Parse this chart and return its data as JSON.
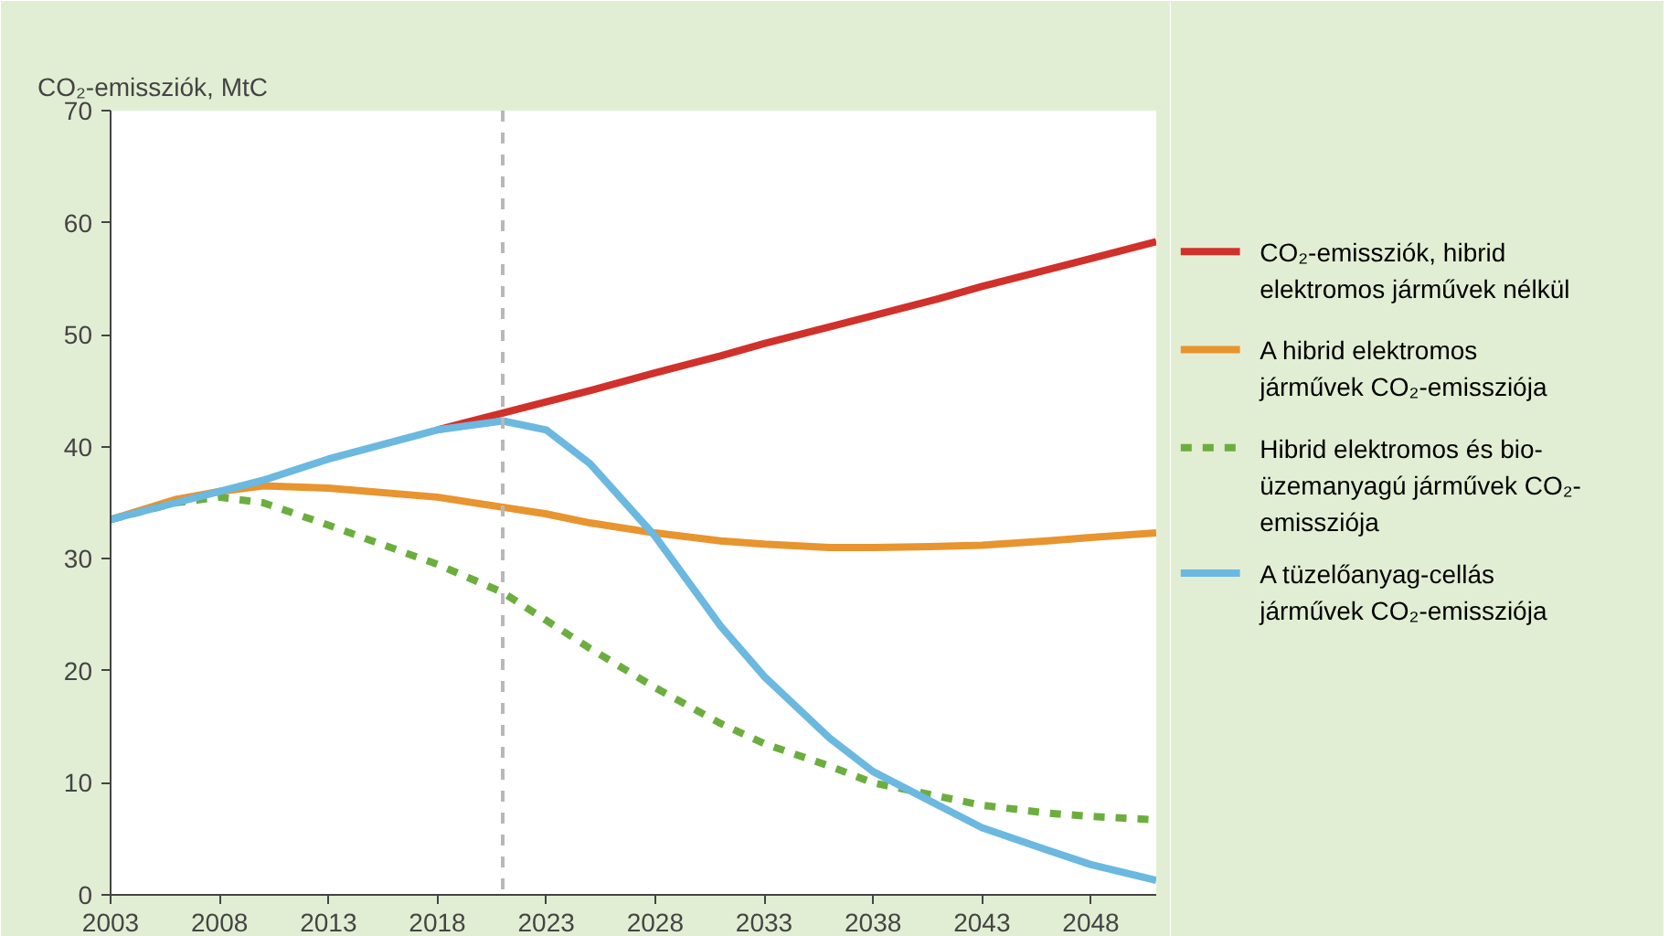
{
  "chart_data": {
    "type": "line",
    "ylabel": "CO₂-emissziók, MtC",
    "x": [
      2003,
      2006,
      2008,
      2010,
      2013,
      2018,
      2021,
      2023,
      2025,
      2028,
      2031,
      2033,
      2036,
      2038,
      2041,
      2043,
      2046,
      2048,
      2051
    ],
    "series": [
      {
        "name": "CO₂-emissziók, hibrid elektromos járművek nélkül",
        "color": "#d0312a",
        "values": [
          null,
          null,
          null,
          null,
          null,
          41.5,
          43,
          44,
          45,
          46.6,
          48.1,
          49.2,
          50.7,
          51.7,
          53.2,
          54.3,
          55.8,
          56.8,
          58.3
        ]
      },
      {
        "name": "A hibrid elektromos járművek CO₂-emissziója",
        "color": "#e8942f",
        "values": [
          33.5,
          35.3,
          36,
          36.5,
          36.3,
          35.5,
          34.6,
          34,
          33.2,
          32.3,
          31.6,
          31.3,
          31,
          31,
          31.1,
          31.2,
          31.6,
          31.9,
          32.3
        ]
      },
      {
        "name": "Hibrid elektromos és bio-üzemanyagú járművek CO₂-emissziója",
        "color": "#6cae3e",
        "line_style": "dashed",
        "values": [
          33.5,
          35,
          35.5,
          35,
          33,
          29.5,
          27,
          24.5,
          22,
          18.5,
          15.3,
          13.5,
          11.5,
          10,
          8.8,
          8,
          7.3,
          7,
          6.7
        ]
      },
      {
        "name": "A tüzelőanyag-cellás járművek CO₂-emissziója",
        "color": "#6bb8e0",
        "values": [
          33.5,
          35,
          36,
          37,
          38.9,
          41.5,
          42.3,
          41.5,
          38.5,
          32,
          24,
          19.5,
          14,
          11,
          8,
          6,
          4,
          2.7,
          1.3
        ]
      }
    ],
    "xlim": [
      2003,
      2051
    ],
    "ylim": [
      0,
      70
    ],
    "xticks": [
      2003,
      2008,
      2013,
      2018,
      2023,
      2028,
      2033,
      2038,
      2043,
      2048
    ],
    "yticks": [
      0,
      10,
      20,
      30,
      40,
      50,
      60,
      70
    ],
    "ref_lines": [
      {
        "axis": "x",
        "value": 2021,
        "color": "#b8b8b8",
        "line_style": "dashed"
      }
    ],
    "grid": false,
    "legend": "right",
    "line_style": "solid",
    "marker": "none"
  }
}
